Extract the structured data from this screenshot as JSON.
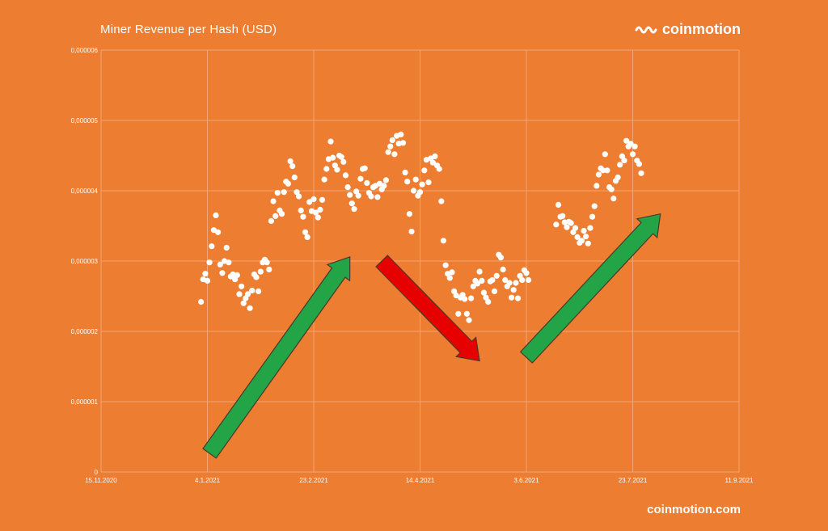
{
  "header": {
    "title": "Miner Revenue per Hash (USD)",
    "brand_name": "coinmotion"
  },
  "footer": {
    "url": "coinmotion.com"
  },
  "colors": {
    "background": "#ED7D31",
    "points": "#FFFFFF",
    "grid": "#F4A577",
    "arrow_up": "#22A447",
    "arrow_down": "#E60000"
  },
  "chart_data": {
    "type": "scatter",
    "title": "Miner Revenue per Hash (USD)",
    "x_type": "date",
    "x_range": [
      "2020-11-15",
      "2021-09-11"
    ],
    "x_ticks": [
      "15.11.2020",
      "4.1.2021",
      "23.2.2021",
      "14.4.2021",
      "3.6.2021",
      "23.7.2021",
      "11.9.2021"
    ],
    "y_range": [
      0,
      6e-06
    ],
    "y_ticks": [
      "0",
      "0,000001",
      "0,000002",
      "0,000003",
      "0,000004",
      "0,000005",
      "0,000006"
    ],
    "grid": true,
    "series": [
      {
        "points": [
          [
            "2021-01-01",
            2.42e-06
          ],
          [
            "2021-01-02",
            2.74e-06
          ],
          [
            "2021-01-03",
            2.82e-06
          ],
          [
            "2021-01-04",
            2.72e-06
          ],
          [
            "2021-01-05",
            2.98e-06
          ],
          [
            "2021-01-06",
            3.21e-06
          ],
          [
            "2021-01-07",
            3.44e-06
          ],
          [
            "2021-01-08",
            3.65e-06
          ],
          [
            "2021-01-09",
            3.41e-06
          ],
          [
            "2021-01-10",
            2.95e-06
          ],
          [
            "2021-01-11",
            2.83e-06
          ],
          [
            "2021-01-12",
            3e-06
          ],
          [
            "2021-01-13",
            3.19e-06
          ],
          [
            "2021-01-14",
            2.98e-06
          ],
          [
            "2021-01-15",
            2.78e-06
          ],
          [
            "2021-01-16",
            2.81e-06
          ],
          [
            "2021-01-17",
            2.74e-06
          ],
          [
            "2021-01-18",
            2.8e-06
          ],
          [
            "2021-01-19",
            2.53e-06
          ],
          [
            "2021-01-20",
            2.64e-06
          ],
          [
            "2021-01-21",
            2.4e-06
          ],
          [
            "2021-01-22",
            2.47e-06
          ],
          [
            "2021-01-23",
            2.53e-06
          ],
          [
            "2021-01-24",
            2.33e-06
          ],
          [
            "2021-01-25",
            2.58e-06
          ],
          [
            "2021-01-26",
            2.81e-06
          ],
          [
            "2021-01-27",
            2.77e-06
          ],
          [
            "2021-01-28",
            2.57e-06
          ],
          [
            "2021-01-29",
            2.85e-06
          ],
          [
            "2021-01-30",
            2.98e-06
          ],
          [
            "2021-01-31",
            3.02e-06
          ],
          [
            "2021-02-01",
            2.98e-06
          ],
          [
            "2021-02-02",
            2.88e-06
          ],
          [
            "2021-02-03",
            3.57e-06
          ],
          [
            "2021-02-04",
            3.85e-06
          ],
          [
            "2021-02-05",
            3.64e-06
          ],
          [
            "2021-02-06",
            3.97e-06
          ],
          [
            "2021-02-07",
            3.72e-06
          ],
          [
            "2021-02-08",
            3.67e-06
          ],
          [
            "2021-02-09",
            3.98e-06
          ],
          [
            "2021-02-10",
            4.13e-06
          ],
          [
            "2021-02-11",
            4.1e-06
          ],
          [
            "2021-02-12",
            4.42e-06
          ],
          [
            "2021-02-13",
            4.35e-06
          ],
          [
            "2021-02-14",
            4.19e-06
          ],
          [
            "2021-02-15",
            3.98e-06
          ],
          [
            "2021-02-16",
            3.92e-06
          ],
          [
            "2021-02-17",
            3.72e-06
          ],
          [
            "2021-02-18",
            3.63e-06
          ],
          [
            "2021-02-19",
            3.41e-06
          ],
          [
            "2021-02-20",
            3.34e-06
          ],
          [
            "2021-02-21",
            3.84e-06
          ],
          [
            "2021-02-22",
            3.71e-06
          ],
          [
            "2021-02-23",
            3.88e-06
          ],
          [
            "2021-02-24",
            3.69e-06
          ],
          [
            "2021-02-25",
            3.62e-06
          ],
          [
            "2021-02-26",
            3.73e-06
          ],
          [
            "2021-02-27",
            3.87e-06
          ],
          [
            "2021-02-28",
            4.16e-06
          ],
          [
            "2021-03-01",
            4.31e-06
          ],
          [
            "2021-03-02",
            4.45e-06
          ],
          [
            "2021-03-03",
            4.7e-06
          ],
          [
            "2021-03-04",
            4.47e-06
          ],
          [
            "2021-03-05",
            4.36e-06
          ],
          [
            "2021-03-06",
            4.3e-06
          ],
          [
            "2021-03-07",
            4.5e-06
          ],
          [
            "2021-03-08",
            4.48e-06
          ],
          [
            "2021-03-09",
            4.41e-06
          ],
          [
            "2021-03-10",
            4.22e-06
          ],
          [
            "2021-03-11",
            4.05e-06
          ],
          [
            "2021-03-12",
            3.94e-06
          ],
          [
            "2021-03-13",
            3.82e-06
          ],
          [
            "2021-03-14",
            3.74e-06
          ],
          [
            "2021-03-15",
            3.99e-06
          ],
          [
            "2021-03-16",
            3.93e-06
          ],
          [
            "2021-03-17",
            4.17e-06
          ],
          [
            "2021-03-18",
            4.31e-06
          ],
          [
            "2021-03-19",
            4.32e-06
          ],
          [
            "2021-03-20",
            4.11e-06
          ],
          [
            "2021-03-21",
            3.97e-06
          ],
          [
            "2021-03-22",
            3.92e-06
          ],
          [
            "2021-03-23",
            4.05e-06
          ],
          [
            "2021-03-24",
            4.07e-06
          ],
          [
            "2021-03-25",
            3.91e-06
          ],
          [
            "2021-03-26",
            4.1e-06
          ],
          [
            "2021-03-27",
            4.02e-06
          ],
          [
            "2021-03-28",
            4.07e-06
          ],
          [
            "2021-03-29",
            4.15e-06
          ],
          [
            "2021-03-30",
            4.55e-06
          ],
          [
            "2021-03-31",
            4.63e-06
          ],
          [
            "2021-04-01",
            4.72e-06
          ],
          [
            "2021-04-02",
            4.52e-06
          ],
          [
            "2021-04-03",
            4.78e-06
          ],
          [
            "2021-04-04",
            4.67e-06
          ],
          [
            "2021-04-05",
            4.8e-06
          ],
          [
            "2021-04-06",
            4.68e-06
          ],
          [
            "2021-04-07",
            4.26e-06
          ],
          [
            "2021-04-08",
            4.13e-06
          ],
          [
            "2021-04-09",
            3.67e-06
          ],
          [
            "2021-04-10",
            3.42e-06
          ],
          [
            "2021-04-11",
            4e-06
          ],
          [
            "2021-04-12",
            4.16e-06
          ],
          [
            "2021-04-13",
            3.93e-06
          ],
          [
            "2021-04-14",
            3.98e-06
          ],
          [
            "2021-04-15",
            4.09e-06
          ],
          [
            "2021-04-16",
            4.29e-06
          ],
          [
            "2021-04-17",
            4.44e-06
          ],
          [
            "2021-04-18",
            4.12e-06
          ],
          [
            "2021-04-19",
            4.46e-06
          ],
          [
            "2021-04-20",
            4.4e-06
          ],
          [
            "2021-04-21",
            4.49e-06
          ],
          [
            "2021-04-22",
            4.36e-06
          ],
          [
            "2021-04-23",
            4.31e-06
          ],
          [
            "2021-04-24",
            3.85e-06
          ],
          [
            "2021-04-25",
            3.29e-06
          ],
          [
            "2021-04-26",
            2.94e-06
          ],
          [
            "2021-04-27",
            2.82e-06
          ],
          [
            "2021-04-28",
            2.76e-06
          ],
          [
            "2021-04-29",
            2.84e-06
          ],
          [
            "2021-04-30",
            2.57e-06
          ],
          [
            "2021-05-01",
            2.51e-06
          ],
          [
            "2021-05-02",
            2.25e-06
          ],
          [
            "2021-05-03",
            2.48e-06
          ],
          [
            "2021-05-04",
            2.52e-06
          ],
          [
            "2021-05-05",
            2.46e-06
          ],
          [
            "2021-05-06",
            2.25e-06
          ],
          [
            "2021-05-07",
            2.16e-06
          ],
          [
            "2021-05-08",
            2.47e-06
          ],
          [
            "2021-05-09",
            2.64e-06
          ],
          [
            "2021-05-10",
            2.72e-06
          ],
          [
            "2021-05-11",
            2.68e-06
          ],
          [
            "2021-05-12",
            2.85e-06
          ],
          [
            "2021-05-13",
            2.72e-06
          ],
          [
            "2021-05-14",
            2.55e-06
          ],
          [
            "2021-05-15",
            2.48e-06
          ],
          [
            "2021-05-16",
            2.42e-06
          ],
          [
            "2021-05-17",
            2.71e-06
          ],
          [
            "2021-05-18",
            2.73e-06
          ],
          [
            "2021-05-19",
            2.57e-06
          ],
          [
            "2021-05-20",
            2.79e-06
          ],
          [
            "2021-05-21",
            3.09e-06
          ],
          [
            "2021-05-22",
            3.05e-06
          ],
          [
            "2021-05-23",
            2.88e-06
          ],
          [
            "2021-05-24",
            2.73e-06
          ],
          [
            "2021-05-25",
            2.64e-06
          ],
          [
            "2021-05-26",
            2.69e-06
          ],
          [
            "2021-05-27",
            2.48e-06
          ],
          [
            "2021-05-28",
            2.59e-06
          ],
          [
            "2021-05-29",
            2.69e-06
          ],
          [
            "2021-05-30",
            2.47e-06
          ],
          [
            "2021-05-31",
            2.79e-06
          ],
          [
            "2021-06-01",
            2.73e-06
          ],
          [
            "2021-06-02",
            2.87e-06
          ],
          [
            "2021-06-03",
            2.83e-06
          ],
          [
            "2021-06-04",
            2.73e-06
          ],
          [
            "2021-06-17",
            3.52e-06
          ],
          [
            "2021-06-18",
            3.8e-06
          ],
          [
            "2021-06-19",
            3.63e-06
          ],
          [
            "2021-06-20",
            3.64e-06
          ],
          [
            "2021-06-21",
            3.55e-06
          ],
          [
            "2021-06-22",
            3.48e-06
          ],
          [
            "2021-06-23",
            3.56e-06
          ],
          [
            "2021-06-24",
            3.54e-06
          ],
          [
            "2021-06-25",
            3.41e-06
          ],
          [
            "2021-06-26",
            3.47e-06
          ],
          [
            "2021-06-27",
            3.34e-06
          ],
          [
            "2021-06-28",
            3.26e-06
          ],
          [
            "2021-06-29",
            3.29e-06
          ],
          [
            "2021-06-30",
            3.43e-06
          ],
          [
            "2021-07-01",
            3.35e-06
          ],
          [
            "2021-07-02",
            3.25e-06
          ],
          [
            "2021-07-03",
            3.47e-06
          ],
          [
            "2021-07-04",
            3.63e-06
          ],
          [
            "2021-07-05",
            3.78e-06
          ],
          [
            "2021-07-06",
            4.07e-06
          ],
          [
            "2021-07-07",
            4.23e-06
          ],
          [
            "2021-07-08",
            4.32e-06
          ],
          [
            "2021-07-09",
            4.29e-06
          ],
          [
            "2021-07-10",
            4.52e-06
          ],
          [
            "2021-07-11",
            4.29e-06
          ],
          [
            "2021-07-12",
            4.05e-06
          ],
          [
            "2021-07-13",
            4.02e-06
          ],
          [
            "2021-07-14",
            3.89e-06
          ],
          [
            "2021-07-15",
            4.14e-06
          ],
          [
            "2021-07-16",
            4.19e-06
          ],
          [
            "2021-07-17",
            4.37e-06
          ],
          [
            "2021-07-18",
            4.49e-06
          ],
          [
            "2021-07-19",
            4.43e-06
          ],
          [
            "2021-07-20",
            4.71e-06
          ],
          [
            "2021-07-21",
            4.63e-06
          ],
          [
            "2021-07-22",
            4.67e-06
          ],
          [
            "2021-07-23",
            4.52e-06
          ],
          [
            "2021-07-24",
            4.63e-06
          ],
          [
            "2021-07-25",
            4.43e-06
          ],
          [
            "2021-07-26",
            4.38e-06
          ],
          [
            "2021-07-27",
            4.25e-06
          ]
        ]
      }
    ],
    "annotations": [
      {
        "type": "arrow",
        "color": "#22A447",
        "from": [
          "2021-01-05",
          2.65e-07
        ],
        "to": [
          "2021-03-12",
          3.06e-06
        ]
      },
      {
        "type": "arrow",
        "color": "#E60000",
        "from": [
          "2021-03-27",
          3e-06
        ],
        "to": [
          "2021-05-12",
          1.58e-06
        ]
      },
      {
        "type": "arrow",
        "color": "#22A447",
        "from": [
          "2021-06-03",
          1.63e-06
        ],
        "to": [
          "2021-08-05",
          3.67e-06
        ]
      }
    ]
  }
}
